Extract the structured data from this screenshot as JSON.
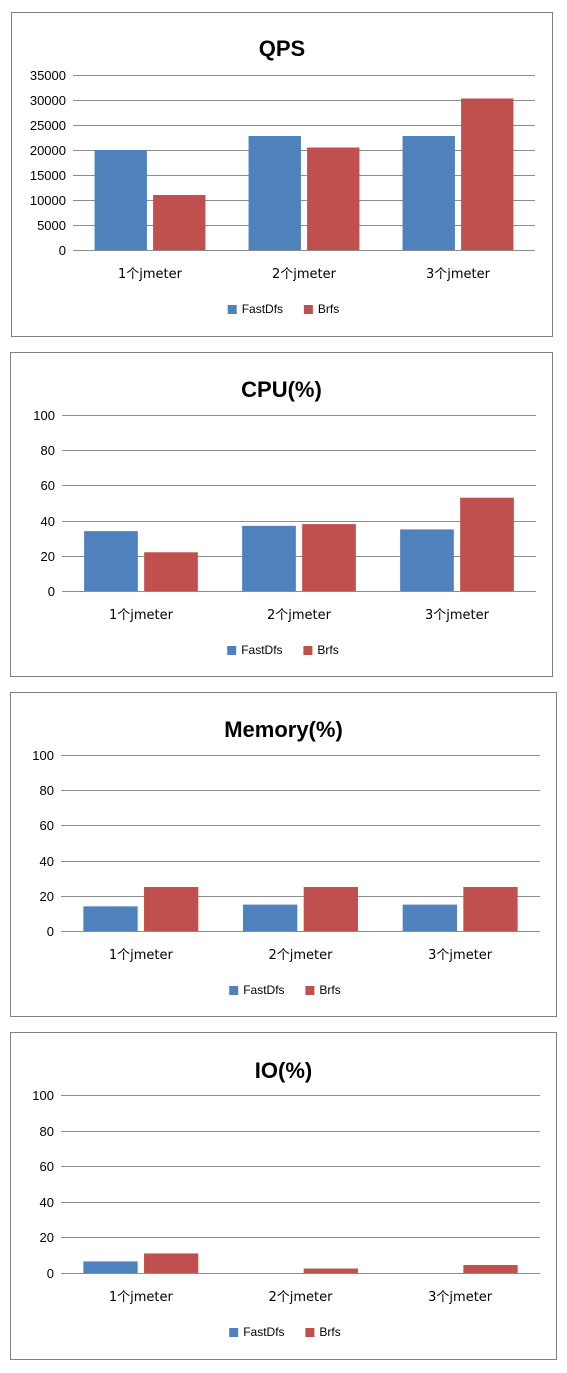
{
  "chart_data": [
    {
      "type": "bar",
      "title": "QPS",
      "categories": [
        "1个jmeter",
        "2个jmeter",
        "3个jmeter"
      ],
      "series": [
        {
          "name": "FastDfs",
          "values": [
            20000,
            22800,
            22800
          ]
        },
        {
          "name": "Brfs",
          "values": [
            11000,
            20500,
            30300
          ]
        }
      ],
      "yticks": [
        "0",
        "5000",
        "10000",
        "15000",
        "20000",
        "25000",
        "30000",
        "35000"
      ],
      "ylim": [
        0,
        35000
      ],
      "grid": true,
      "legend": "bottom"
    },
    {
      "type": "bar",
      "title": "CPU(%)",
      "categories": [
        "1个jmeter",
        "2个jmeter",
        "3个jmeter"
      ],
      "series": [
        {
          "name": "FastDfs",
          "values": [
            34,
            37,
            35
          ]
        },
        {
          "name": "Brfs",
          "values": [
            22,
            38,
            53
          ]
        }
      ],
      "yticks": [
        "0",
        "20",
        "40",
        "60",
        "80",
        "100"
      ],
      "ylim": [
        0,
        100
      ],
      "grid": true,
      "legend": "bottom"
    },
    {
      "type": "bar",
      "title": "Memory(%)",
      "categories": [
        "1个jmeter",
        "2个jmeter",
        "3个jmeter"
      ],
      "series": [
        {
          "name": "FastDfs",
          "values": [
            14,
            15,
            15
          ]
        },
        {
          "name": "Brfs",
          "values": [
            25,
            25,
            25
          ]
        }
      ],
      "yticks": [
        "0",
        "20",
        "40",
        "60",
        "80",
        "100"
      ],
      "ylim": [
        0,
        100
      ],
      "grid": true,
      "legend": "bottom"
    },
    {
      "type": "bar",
      "title": "IO(%)",
      "categories": [
        "1个jmeter",
        "2个jmeter",
        "3个jmeter"
      ],
      "series": [
        {
          "name": "FastDfs",
          "values": [
            6.5,
            0,
            0
          ]
        },
        {
          "name": "Brfs",
          "values": [
            11,
            2.5,
            4.5
          ]
        }
      ],
      "yticks": [
        "0",
        "20",
        "40",
        "60",
        "80",
        "100"
      ],
      "ylim": [
        0,
        100
      ],
      "grid": true,
      "legend": "bottom"
    }
  ],
  "colors": {
    "FastDfs": "#4f81bd",
    "Brfs": "#c0504d",
    "grid": "#8c8c8c",
    "frame": "#7f7f7f"
  }
}
